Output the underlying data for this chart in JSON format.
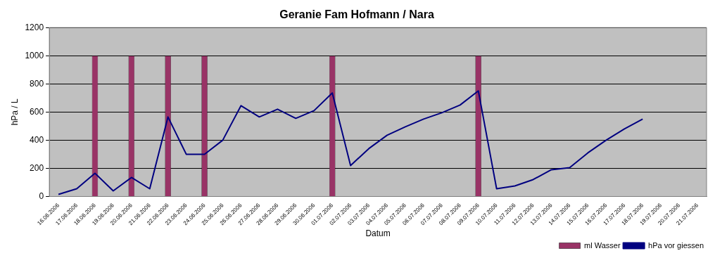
{
  "chart_data": {
    "type": "bar",
    "title": "Geranie Fam Hofmann / Nara",
    "xlabel": "Datum",
    "ylabel": "hPa / L",
    "categories": [
      "16.06.2006",
      "17.06.2006",
      "18.06.2006",
      "19.06.2006",
      "20.06.2006",
      "21.06.2006",
      "22.06.2006",
      "23.06.2006",
      "24.06.2006",
      "25.06.2006",
      "26.06.2006",
      "27.06.2006",
      "28.06.2006",
      "29.06.2006",
      "30.06.2006",
      "01.07.2006",
      "02.07.2006",
      "03.07.2006",
      "04.07.2006",
      "05.07.2006",
      "06.07.2006",
      "07.07.2006",
      "08.07.2006",
      "09.07.2006",
      "10.07.2006",
      "11.07.2006",
      "12.07.2006",
      "13.07.2006",
      "14.07.2006",
      "15.07.2006",
      "16.07.2006",
      "17.07.2006",
      "18.07.2006",
      "19.07.2006",
      "20.07.2006",
      "21.07.2006"
    ],
    "series": [
      {
        "name": "ml Wasser",
        "color": "#993366",
        "values": [
          null,
          null,
          1000,
          null,
          1000,
          null,
          1000,
          null,
          1000,
          null,
          null,
          null,
          null,
          null,
          null,
          1000,
          null,
          null,
          null,
          null,
          null,
          null,
          null,
          1000,
          null,
          null,
          null,
          null,
          null,
          null,
          null,
          null,
          null,
          null,
          null,
          null
        ]
      },
      {
        "name": "hPa vor giessen",
        "type": "line",
        "color": "#000080",
        "values": [
          15,
          55,
          165,
          40,
          135,
          55,
          565,
          300,
          300,
          400,
          645,
          565,
          620,
          555,
          610,
          735,
          220,
          340,
          435,
          495,
          550,
          595,
          650,
          750,
          55,
          75,
          120,
          190,
          205,
          310,
          400,
          480,
          550,
          null,
          null,
          null
        ]
      }
    ],
    "ylim": [
      0,
      1200
    ],
    "yticks": [
      0,
      200,
      400,
      600,
      800,
      1000,
      1200
    ],
    "grid": "y",
    "legend": "bottom right",
    "marker": "none",
    "line_style": "solid"
  }
}
